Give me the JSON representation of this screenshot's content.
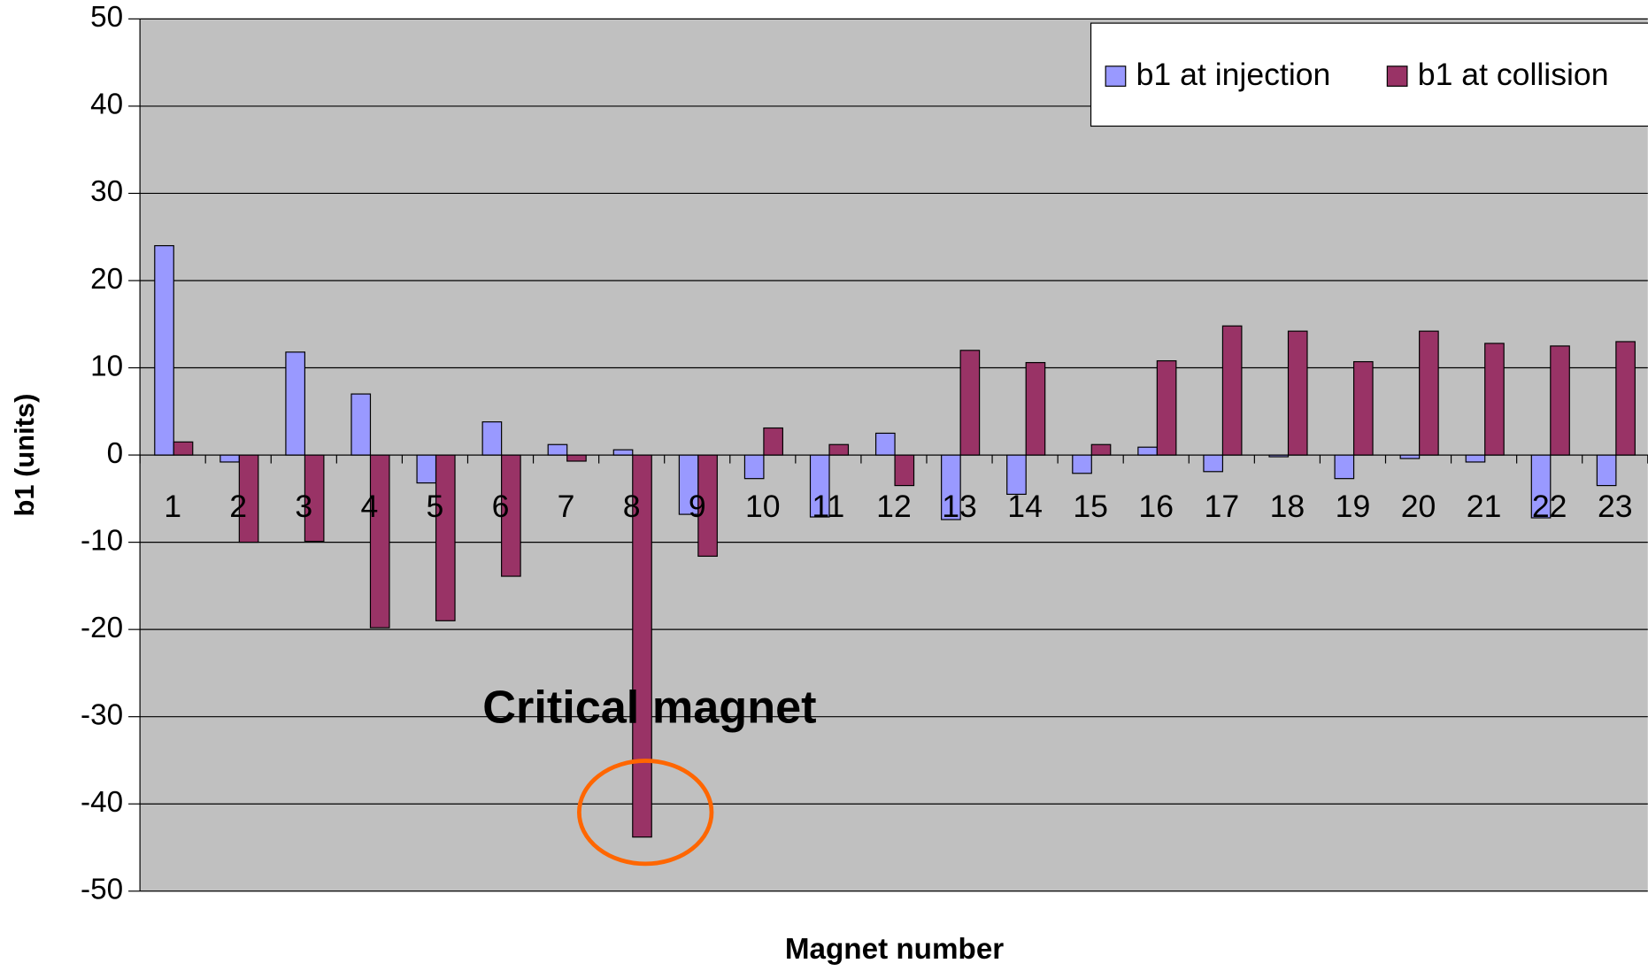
{
  "chart_data": {
    "type": "bar",
    "xlabel": "Magnet number",
    "ylabel": "b1 (units)",
    "categories": [
      "1",
      "2",
      "3",
      "4",
      "5",
      "6",
      "7",
      "8",
      "9",
      "10",
      "11",
      "12",
      "13",
      "14",
      "15",
      "16",
      "17",
      "18",
      "19",
      "20",
      "21",
      "22",
      "23"
    ],
    "series": [
      {
        "name": "b1 at injection",
        "color": "#9999ff",
        "values": [
          24,
          -0.8,
          11.8,
          7,
          -3.2,
          3.8,
          1.2,
          0.6,
          -6.8,
          -2.7,
          -7.1,
          2.5,
          -7.4,
          -4.5,
          -2.1,
          0.9,
          -1.9,
          -0.2,
          -2.7,
          -0.4,
          -0.8,
          -7.2,
          -3.5
        ]
      },
      {
        "name": "b1 at collision",
        "color": "#993366",
        "values": [
          1.5,
          -10,
          -9.9,
          -19.8,
          -19,
          -13.9,
          -0.7,
          -43.8,
          -11.6,
          3.1,
          1.2,
          -3.5,
          12,
          10.6,
          1.2,
          10.8,
          14.8,
          14.2,
          10.7,
          14.2,
          12.8,
          12.5,
          13
        ]
      }
    ],
    "ylim": [
      -50,
      50
    ],
    "yticks": [
      -50,
      -40,
      -30,
      -20,
      -10,
      0,
      10,
      20,
      30,
      40,
      50
    ],
    "grid": true,
    "legend": "top right",
    "annotation": "Critical magnet",
    "annotation_color": "#ff6600",
    "plot_background": "#c0c0c0"
  }
}
